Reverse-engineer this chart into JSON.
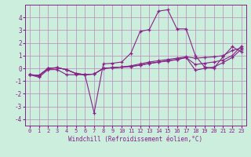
{
  "xlabel": "Windchill (Refroidissement éolien,°C)",
  "background_color": "#cceedd",
  "grid_color": "#bb88bb",
  "line_color": "#882288",
  "xlim": [
    -0.5,
    23.5
  ],
  "ylim": [
    -4.5,
    5.0
  ],
  "xticks": [
    0,
    1,
    2,
    3,
    4,
    5,
    6,
    7,
    8,
    9,
    10,
    11,
    12,
    13,
    14,
    15,
    16,
    17,
    18,
    19,
    20,
    21,
    22,
    23
  ],
  "yticks": [
    -4,
    -3,
    -2,
    -1,
    0,
    1,
    2,
    3,
    4
  ],
  "s1_y": [
    -0.5,
    -0.7,
    -0.1,
    -0.1,
    -0.5,
    -0.5,
    -0.5,
    -3.5,
    0.35,
    0.4,
    0.5,
    1.2,
    2.9,
    3.05,
    4.5,
    4.6,
    3.1,
    3.1,
    1.0,
    0.1,
    0.0,
    0.9,
    1.7,
    1.3
  ],
  "s2_y": [
    -0.5,
    -0.6,
    0.0,
    0.05,
    -0.1,
    -0.4,
    -0.5,
    -0.45,
    0.0,
    0.05,
    0.1,
    0.2,
    0.35,
    0.5,
    0.6,
    0.7,
    0.8,
    0.9,
    0.8,
    0.85,
    0.9,
    1.0,
    1.4,
    1.6
  ],
  "s3_y": [
    -0.5,
    -0.55,
    0.0,
    0.05,
    -0.1,
    -0.4,
    -0.5,
    -0.45,
    0.0,
    0.05,
    0.1,
    0.15,
    0.25,
    0.4,
    0.5,
    0.6,
    0.7,
    0.85,
    0.3,
    0.4,
    0.5,
    0.65,
    1.0,
    1.75
  ],
  "s4_y": [
    -0.5,
    -0.55,
    0.0,
    0.05,
    -0.1,
    -0.4,
    -0.5,
    -0.45,
    0.0,
    0.05,
    0.1,
    0.15,
    0.25,
    0.38,
    0.48,
    0.58,
    0.68,
    0.85,
    -0.15,
    0.0,
    0.1,
    0.45,
    0.85,
    1.5
  ]
}
